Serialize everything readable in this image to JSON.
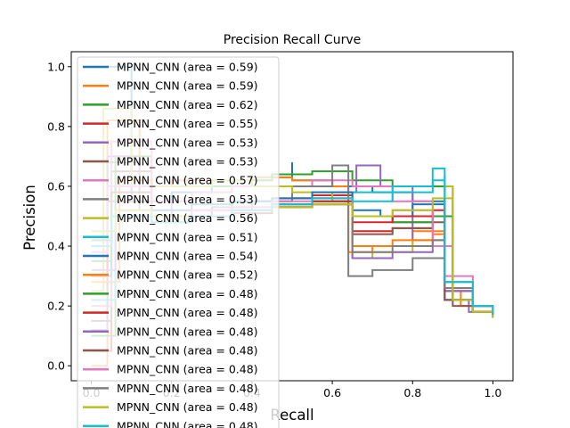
{
  "chart_data": {
    "type": "line",
    "title": "Precision Recall Curve",
    "xlabel": "Recall",
    "ylabel": "Precision",
    "xlim": [
      -0.05,
      1.05
    ],
    "ylim": [
      -0.05,
      1.05
    ],
    "xticks": [
      "0.0",
      "0.2",
      "0.4",
      "0.6",
      "0.8",
      "1.0"
    ],
    "xtick_values": [
      0.0,
      0.2,
      0.4,
      0.6,
      0.8,
      1.0
    ],
    "yticks": [
      "0.0",
      "0.2",
      "0.4",
      "0.6",
      "0.8",
      "1.0"
    ],
    "ytick_values": [
      0.0,
      0.2,
      0.4,
      0.6,
      0.8,
      1.0
    ],
    "grid": false,
    "legend_position": "upper-left",
    "series": [
      {
        "name": "MPNN_CNN (area = 0.59)",
        "color": "#1f77b4",
        "x": [
          0.0,
          0.02,
          0.1,
          0.2,
          0.3,
          0.4,
          0.5,
          0.5,
          0.6,
          0.64,
          0.7,
          0.8,
          0.88,
          0.88,
          0.9,
          0.95,
          1.0
        ],
        "y": [
          1.0,
          1.0,
          0.55,
          0.58,
          0.6,
          0.63,
          0.68,
          0.62,
          0.6,
          0.6,
          0.58,
          0.55,
          0.55,
          0.25,
          0.22,
          0.18,
          0.17
        ]
      },
      {
        "name": "MPNN_CNN (area = 0.59)",
        "color": "#ff7f0e",
        "x": [
          0.0,
          0.04,
          0.12,
          0.2,
          0.3,
          0.4,
          0.5,
          0.6,
          0.64,
          0.7,
          0.8,
          0.88,
          0.88,
          0.92,
          1.0
        ],
        "y": [
          0.0,
          0.82,
          0.6,
          0.62,
          0.62,
          0.63,
          0.62,
          0.6,
          0.38,
          0.4,
          0.45,
          0.48,
          0.25,
          0.2,
          0.17
        ]
      },
      {
        "name": "MPNN_CNN (area = 0.62)",
        "color": "#2ca02c",
        "x": [
          0.0,
          0.06,
          0.15,
          0.25,
          0.35,
          0.45,
          0.55,
          0.65,
          0.75,
          0.85,
          0.9,
          0.9,
          0.95,
          1.0
        ],
        "y": [
          0.1,
          0.7,
          0.6,
          0.6,
          0.62,
          0.64,
          0.65,
          0.62,
          0.6,
          0.6,
          0.58,
          0.22,
          0.2,
          0.17
        ]
      },
      {
        "name": "MPNN_CNN (area = 0.55)",
        "color": "#d62728",
        "x": [
          0.0,
          0.05,
          0.15,
          0.25,
          0.35,
          0.45,
          0.55,
          0.65,
          0.75,
          0.85,
          0.88,
          0.88,
          0.95,
          1.0
        ],
        "y": [
          0.05,
          0.6,
          0.5,
          0.52,
          0.55,
          0.56,
          0.57,
          0.45,
          0.46,
          0.5,
          0.52,
          0.22,
          0.18,
          0.17
        ]
      },
      {
        "name": "MPNN_CNN (area = 0.53)",
        "color": "#9467bd",
        "x": [
          0.0,
          0.04,
          0.1,
          0.2,
          0.3,
          0.4,
          0.5,
          0.6,
          0.66,
          0.72,
          0.8,
          0.88,
          0.88,
          0.94,
          1.0
        ],
        "y": [
          0.12,
          0.7,
          0.55,
          0.5,
          0.52,
          0.55,
          0.56,
          0.58,
          0.67,
          0.6,
          0.42,
          0.4,
          0.22,
          0.18,
          0.16
        ]
      },
      {
        "name": "MPNN_CNN (area = 0.53)",
        "color": "#8c564b",
        "x": [
          0.0,
          0.05,
          0.15,
          0.25,
          0.35,
          0.45,
          0.55,
          0.6,
          0.65,
          0.75,
          0.85,
          0.9,
          0.9,
          0.95,
          1.0
        ],
        "y": [
          0.15,
          0.65,
          0.5,
          0.5,
          0.52,
          0.54,
          0.55,
          0.55,
          0.5,
          0.48,
          0.5,
          0.55,
          0.2,
          0.18,
          0.16
        ]
      },
      {
        "name": "MPNN_CNN (area = 0.57)",
        "color": "#e377c2",
        "x": [
          0.0,
          0.05,
          0.15,
          0.25,
          0.35,
          0.45,
          0.55,
          0.65,
          0.75,
          0.85,
          0.9,
          0.9,
          0.95,
          1.0
        ],
        "y": [
          0.2,
          0.75,
          0.55,
          0.58,
          0.6,
          0.6,
          0.62,
          0.6,
          0.55,
          0.4,
          0.38,
          0.25,
          0.2,
          0.17
        ]
      },
      {
        "name": "MPNN_CNN (area = 0.53)",
        "color": "#7f7f7f",
        "x": [
          0.0,
          0.04,
          0.12,
          0.2,
          0.3,
          0.4,
          0.5,
          0.6,
          0.64,
          0.64,
          0.7,
          0.8,
          0.88,
          0.88,
          0.95,
          1.0
        ],
        "y": [
          0.18,
          0.68,
          0.52,
          0.5,
          0.53,
          0.55,
          0.6,
          0.67,
          0.6,
          0.3,
          0.32,
          0.36,
          0.38,
          0.22,
          0.18,
          0.16
        ]
      },
      {
        "name": "MPNN_CNN (area = 0.56)",
        "color": "#bcbd22",
        "x": [
          0.0,
          0.03,
          0.1,
          0.2,
          0.3,
          0.4,
          0.5,
          0.6,
          0.65,
          0.7,
          0.8,
          0.88,
          0.9,
          0.9,
          0.95,
          1.0
        ],
        "y": [
          0.25,
          0.86,
          0.6,
          0.6,
          0.62,
          0.6,
          0.58,
          0.55,
          0.36,
          0.38,
          0.42,
          0.6,
          0.6,
          0.25,
          0.2,
          0.17
        ]
      },
      {
        "name": "MPNN_CNN (area = 0.51)",
        "color": "#17becf",
        "x": [
          0.0,
          0.06,
          0.15,
          0.25,
          0.35,
          0.45,
          0.55,
          0.65,
          0.75,
          0.85,
          0.88,
          0.88,
          0.95,
          1.0
        ],
        "y": [
          0.22,
          0.5,
          0.48,
          0.5,
          0.52,
          0.54,
          0.56,
          0.58,
          0.6,
          0.66,
          0.65,
          0.22,
          0.18,
          0.16
        ]
      },
      {
        "name": "MPNN_CNN (area = 0.54)",
        "color": "#1f77b4",
        "x": [
          0.0,
          0.05,
          0.15,
          0.25,
          0.35,
          0.45,
          0.55,
          0.65,
          0.72,
          0.8,
          0.88,
          0.88,
          0.95,
          1.0
        ],
        "y": [
          0.3,
          0.55,
          0.52,
          0.54,
          0.55,
          0.56,
          0.58,
          0.52,
          0.5,
          0.54,
          0.56,
          0.28,
          0.2,
          0.17
        ]
      },
      {
        "name": "MPNN_CNN (area = 0.52)",
        "color": "#ff7f0e",
        "x": [
          0.0,
          0.07,
          0.15,
          0.25,
          0.35,
          0.45,
          0.55,
          0.65,
          0.75,
          0.85,
          0.88,
          0.88,
          0.95,
          1.0
        ],
        "y": [
          0.28,
          0.62,
          0.5,
          0.5,
          0.52,
          0.54,
          0.55,
          0.4,
          0.42,
          0.44,
          0.46,
          0.25,
          0.2,
          0.16
        ]
      },
      {
        "name": "MPNN_CNN (area = 0.48)",
        "color": "#2ca02c",
        "x": [
          0.0,
          0.05,
          0.15,
          0.25,
          0.35,
          0.45,
          0.55,
          0.65,
          0.75,
          0.85,
          0.9,
          0.9,
          0.95,
          1.0
        ],
        "y": [
          0.35,
          0.5,
          0.48,
          0.5,
          0.52,
          0.53,
          0.55,
          0.5,
          0.48,
          0.5,
          0.5,
          0.22,
          0.18,
          0.16
        ]
      },
      {
        "name": "MPNN_CNN (area = 0.48)",
        "color": "#d62728",
        "x": [
          0.0,
          0.04,
          0.15,
          0.25,
          0.35,
          0.45,
          0.55,
          0.65,
          0.75,
          0.85,
          0.88,
          0.88,
          0.95,
          1.0
        ],
        "y": [
          0.3,
          0.55,
          0.5,
          0.5,
          0.52,
          0.54,
          0.55,
          0.48,
          0.5,
          0.52,
          0.54,
          0.25,
          0.18,
          0.16
        ]
      },
      {
        "name": "MPNN_CNN (area = 0.48)",
        "color": "#9467bd",
        "x": [
          0.0,
          0.06,
          0.15,
          0.25,
          0.35,
          0.45,
          0.55,
          0.65,
          0.75,
          0.85,
          0.88,
          0.88,
          0.95,
          1.0
        ],
        "y": [
          0.32,
          0.52,
          0.5,
          0.5,
          0.52,
          0.53,
          0.54,
          0.36,
          0.38,
          0.4,
          0.42,
          0.25,
          0.2,
          0.17
        ]
      },
      {
        "name": "MPNN_CNN (area = 0.48)",
        "color": "#8c564b",
        "x": [
          0.0,
          0.05,
          0.15,
          0.25,
          0.35,
          0.45,
          0.55,
          0.65,
          0.75,
          0.85,
          0.88,
          0.88,
          0.95,
          1.0
        ],
        "y": [
          0.4,
          0.58,
          0.5,
          0.5,
          0.51,
          0.53,
          0.54,
          0.44,
          0.46,
          0.48,
          0.5,
          0.22,
          0.18,
          0.16
        ]
      },
      {
        "name": "MPNN_CNN (area = 0.48)",
        "color": "#e377c2",
        "x": [
          0.0,
          0.04,
          0.15,
          0.25,
          0.35,
          0.45,
          0.55,
          0.65,
          0.75,
          0.85,
          0.88,
          0.88,
          0.95,
          1.0
        ],
        "y": [
          0.38,
          0.6,
          0.5,
          0.52,
          0.53,
          0.55,
          0.56,
          0.5,
          0.52,
          0.4,
          0.42,
          0.3,
          0.2,
          0.17
        ]
      },
      {
        "name": "MPNN_CNN (area = 0.48)",
        "color": "#7f7f7f",
        "x": [
          0.0,
          0.05,
          0.15,
          0.25,
          0.35,
          0.45,
          0.55,
          0.65,
          0.75,
          0.85,
          0.88,
          0.88,
          0.95,
          1.0
        ],
        "y": [
          0.42,
          0.55,
          0.5,
          0.5,
          0.52,
          0.53,
          0.54,
          0.38,
          0.4,
          0.42,
          0.44,
          0.26,
          0.2,
          0.16
        ]
      },
      {
        "name": "MPNN_CNN (area = 0.48)",
        "color": "#bcbd22",
        "x": [
          0.0,
          0.06,
          0.15,
          0.25,
          0.35,
          0.45,
          0.55,
          0.65,
          0.75,
          0.85,
          0.9,
          0.9,
          0.95,
          1.0
        ],
        "y": [
          0.45,
          0.52,
          0.5,
          0.5,
          0.52,
          0.53,
          0.54,
          0.5,
          0.52,
          0.56,
          0.58,
          0.22,
          0.18,
          0.16
        ]
      },
      {
        "name": "MPNN_CNN (area = 0.48)",
        "color": "#17becf",
        "x": [
          0.0,
          0.05,
          0.15,
          0.25,
          0.35,
          0.45,
          0.55,
          0.65,
          0.75,
          0.85,
          0.88,
          0.88,
          0.95,
          1.0
        ],
        "y": [
          0.4,
          0.5,
          0.48,
          0.5,
          0.52,
          0.54,
          0.56,
          0.55,
          0.58,
          0.62,
          0.64,
          0.28,
          0.2,
          0.17
        ]
      }
    ]
  }
}
